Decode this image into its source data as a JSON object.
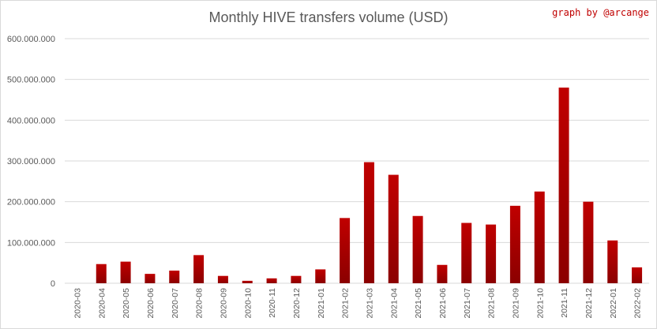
{
  "chart_data": {
    "type": "bar",
    "title": "Monthly HIVE transfers volume (USD)",
    "credit": "graph by @arcange",
    "xlabel": "",
    "ylabel": "",
    "ylim": [
      0,
      600000000
    ],
    "yticks": [
      0,
      100000000,
      200000000,
      300000000,
      400000000,
      500000000,
      600000000
    ],
    "ytick_labels": [
      "0",
      "100.000.000",
      "200.000.000",
      "300.000.000",
      "400.000.000",
      "500.000.000",
      "600.000.000"
    ],
    "grid": true,
    "legend": "none",
    "bar_color": "#c00000",
    "categories": [
      "2020-03",
      "2020-04",
      "2020-05",
      "2020-06",
      "2020-07",
      "2020-08",
      "2020-09",
      "2020-10",
      "2020-11",
      "2020-12",
      "2021-01",
      "2021-02",
      "2021-03",
      "2021-04",
      "2021-05",
      "2021-06",
      "2021-07",
      "2021-08",
      "2021-09",
      "2021-10",
      "2021-11",
      "2021-12",
      "2022-01",
      "2022-02"
    ],
    "values": [
      0,
      47000000,
      53000000,
      23000000,
      31000000,
      69000000,
      18000000,
      6000000,
      12000000,
      18000000,
      34000000,
      160000000,
      297000000,
      266000000,
      165000000,
      45000000,
      148000000,
      144000000,
      190000000,
      225000000,
      480000000,
      200000000,
      105000000,
      39000000
    ]
  }
}
